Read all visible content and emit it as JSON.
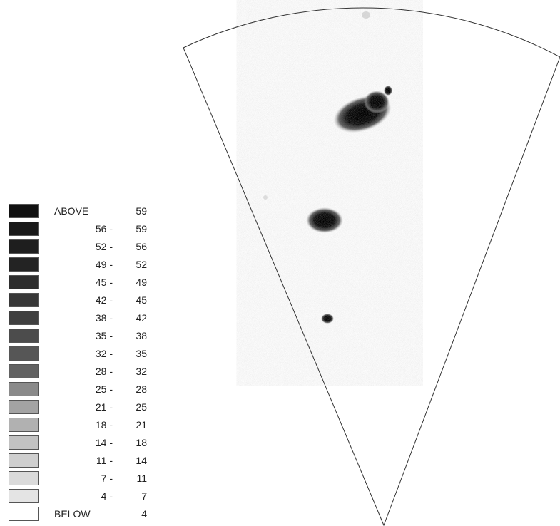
{
  "legend": {
    "items": [
      {
        "low": "ABOVE",
        "high": "59",
        "color": "#111111"
      },
      {
        "low": "56 -",
        "high": "59",
        "color": "#1a1a1a"
      },
      {
        "low": "52 -",
        "high": "56",
        "color": "#1e1e1e"
      },
      {
        "low": "49 -",
        "high": "52",
        "color": "#232323"
      },
      {
        "low": "45 -",
        "high": "49",
        "color": "#2e2e2e"
      },
      {
        "low": "42 -",
        "high": "45",
        "color": "#383838"
      },
      {
        "low": "38 -",
        "high": "42",
        "color": "#404040"
      },
      {
        "low": "35 -",
        "high": "38",
        "color": "#4c4c4c"
      },
      {
        "low": "32 -",
        "high": "35",
        "color": "#565656"
      },
      {
        "low": "28 -",
        "high": "32",
        "color": "#626262"
      },
      {
        "low": "25 -",
        "high": "28",
        "color": "#8a8a8a"
      },
      {
        "low": "21 -",
        "high": "25",
        "color": "#a3a3a3"
      },
      {
        "low": "18 -",
        "high": "21",
        "color": "#b1b1b1"
      },
      {
        "low": "14 -",
        "high": "18",
        "color": "#c2c2c2"
      },
      {
        "low": "11 -",
        "high": "14",
        "color": "#cfcfcf"
      },
      {
        "low": "7 -",
        "high": "11",
        "color": "#dadada"
      },
      {
        "low": "4 -",
        "high": "7",
        "color": "#e4e4e4"
      },
      {
        "low": "BELOW",
        "high": "4",
        "color": "#ffffff"
      }
    ]
  },
  "colors": {
    "outline": "#333333",
    "echo_core": "#1c1c1c",
    "echo_edge": "#8c8c8c"
  }
}
